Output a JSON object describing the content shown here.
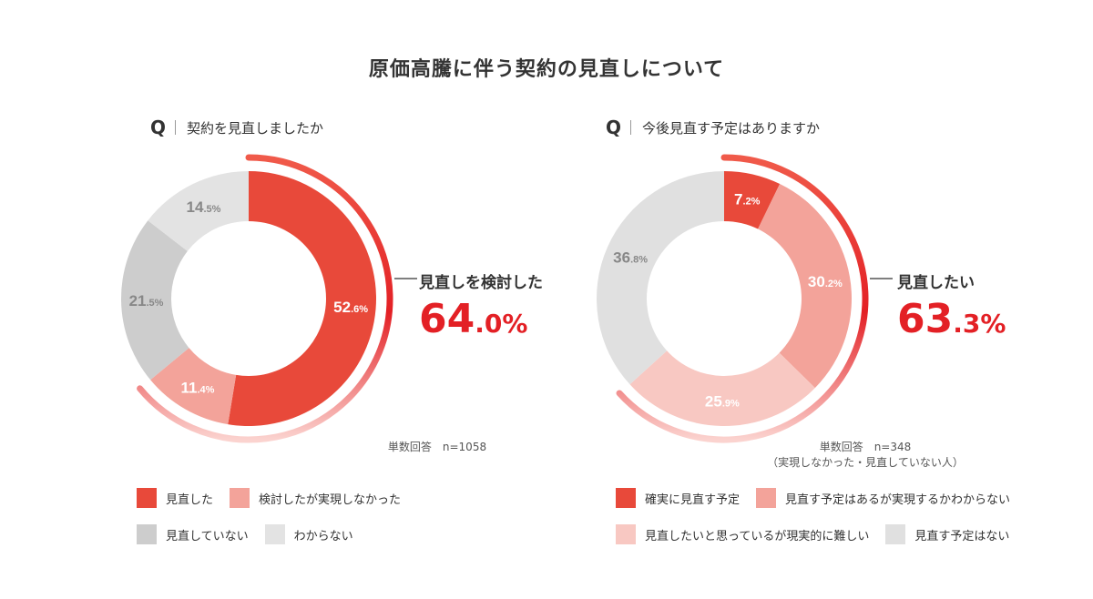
{
  "title": "原価高騰に伴う契約の見直しについて",
  "chart_data": [
    {
      "type": "pie",
      "subtype": "donut",
      "question": "契約を見直しましたか",
      "categories": [
        "見直した",
        "検討したが実現しなかった",
        "見直していない",
        "わからない"
      ],
      "values": [
        52.6,
        11.4,
        21.5,
        14.5
      ],
      "colors": [
        "#e8493a",
        "#f3a39a",
        "#cdcdcd",
        "#e3e3e3"
      ],
      "value_labels": [
        {
          "int": "52",
          "dec": ".6%"
        },
        {
          "int": "11",
          "dec": ".4%"
        },
        {
          "int": "21",
          "dec": ".5%"
        },
        {
          "int": "14",
          "dec": ".5%"
        }
      ],
      "label_colors": [
        "#ffffff",
        "#ffffff",
        "#888888",
        "#888888"
      ],
      "callout": {
        "label": "見直しを検討した",
        "int": "64",
        "dec": ".0%",
        "value": 64.0
      },
      "note": "単数回答　n=1058",
      "note2": ""
    },
    {
      "type": "pie",
      "subtype": "donut",
      "question": "今後見直す予定はありますか",
      "categories": [
        "確実に見直す予定",
        "見直す予定はあるが実現するかわからない",
        "見直したいと思っているが現実的に難しい",
        "見直す予定はない"
      ],
      "values": [
        7.2,
        30.2,
        25.9,
        36.8
      ],
      "colors": [
        "#e8493a",
        "#f3a39a",
        "#f8c8c2",
        "#e0e0e0"
      ],
      "value_labels": [
        {
          "int": "7",
          "dec": ".2%"
        },
        {
          "int": "30",
          "dec": ".2%"
        },
        {
          "int": "25",
          "dec": ".9%"
        },
        {
          "int": "36",
          "dec": ".8%"
        }
      ],
      "label_colors": [
        "#ffffff",
        "#ffffff",
        "#ffffff",
        "#888888"
      ],
      "callout": {
        "label": "見直したい",
        "int": "63",
        "dec": ".3%",
        "value": 63.3
      },
      "note": "単数回答　n=348",
      "note2": "（実現しなかった・見直していない人）"
    }
  ]
}
